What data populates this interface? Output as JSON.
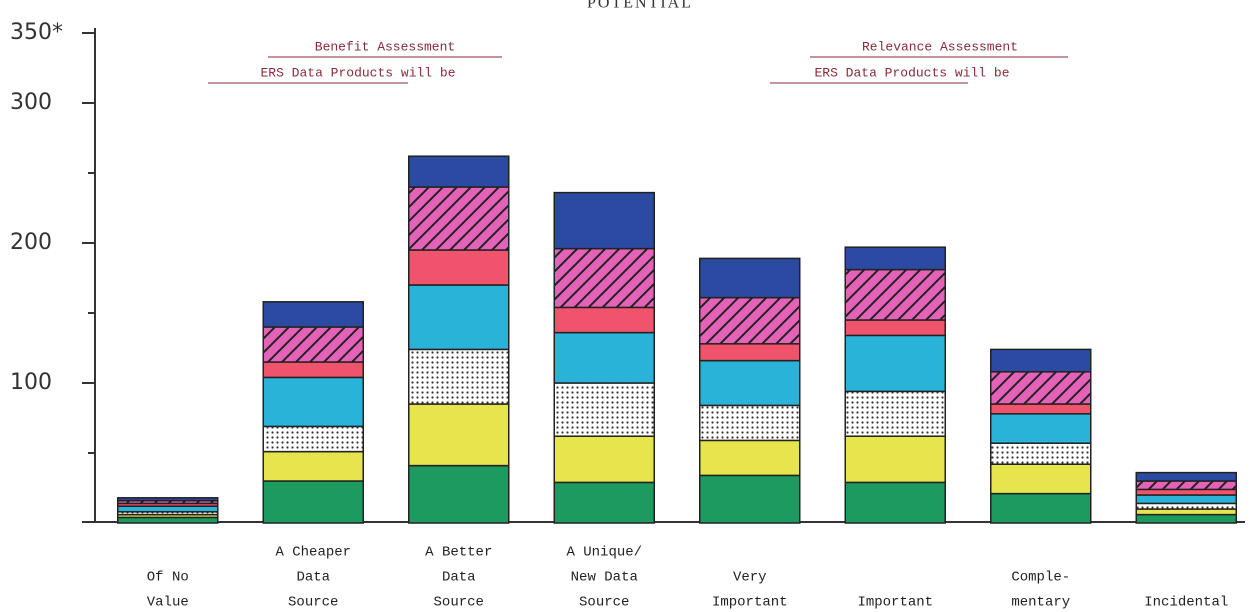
{
  "chart_data": {
    "type": "stacked_bar",
    "title": "POTENTIAL",
    "annotations": [
      {
        "heading": "Benefit Assessment",
        "text": "ERS Data Products will be"
      },
      {
        "heading": "Relevance Assessment",
        "text": "ERS Data Products will be"
      }
    ],
    "categories": [
      [
        "Of No",
        "Value"
      ],
      [
        "A Cheaper",
        "Data",
        "Source"
      ],
      [
        "A Better",
        "Data",
        "Source"
      ],
      [
        "A Unique/",
        "New Data",
        "Source"
      ],
      [
        "Very",
        "Important"
      ],
      [
        "Important"
      ],
      [
        "Comple-",
        "mentary"
      ],
      [
        "Incidental"
      ]
    ],
    "series": [
      {
        "color": "#1c9a60",
        "values": [
          4,
          30,
          41,
          29,
          34,
          29,
          21,
          6
        ]
      },
      {
        "color": "#e6e64c",
        "values": [
          2,
          21,
          44,
          33,
          25,
          33,
          21,
          4
        ]
      },
      {
        "color": "#ffffff",
        "pattern": "dots",
        "values": [
          2,
          18,
          39,
          38,
          25,
          32,
          15,
          4
        ]
      },
      {
        "color": "#2ab3d8",
        "values": [
          4,
          35,
          46,
          36,
          32,
          40,
          21,
          6
        ]
      },
      {
        "color": "#f0546c",
        "values": [
          2,
          11,
          25,
          18,
          12,
          11,
          7,
          4
        ]
      },
      {
        "color": "#e462b8",
        "pattern": "hatch",
        "values": [
          2,
          25,
          45,
          42,
          33,
          36,
          23,
          6
        ]
      },
      {
        "color": "#2b4ba2",
        "values": [
          2,
          18,
          22,
          40,
          28,
          16,
          16,
          6
        ]
      }
    ],
    "ylim": [
      0,
      350
    ],
    "yticks": [
      100,
      200,
      300,
      {
        "value": 350,
        "label": "350*"
      }
    ],
    "minor_yticks": [
      50,
      150,
      250
    ]
  }
}
